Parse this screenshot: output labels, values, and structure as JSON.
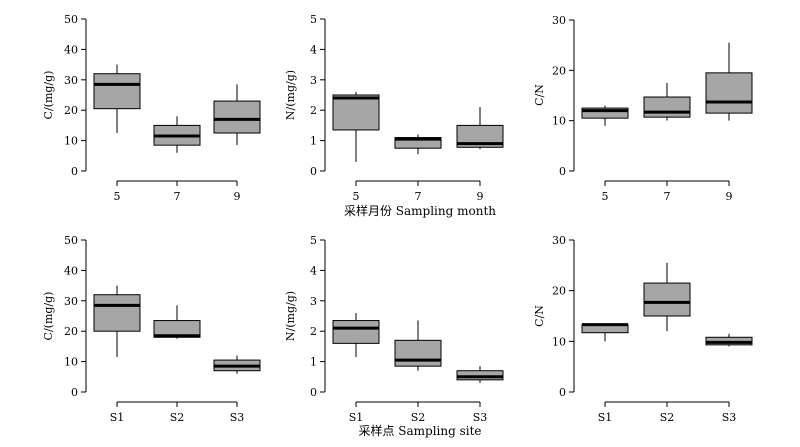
{
  "chart_data": [
    {
      "type": "box",
      "ylabel": "C/(mg/g)",
      "ylim": [
        0,
        50
      ],
      "yticks": [
        0,
        10,
        20,
        30,
        40,
        50
      ],
      "categories": [
        "5",
        "7",
        "9"
      ],
      "boxes": [
        {
          "min": 12.5,
          "q1": 20.5,
          "median": 28.5,
          "q3": 32,
          "max": 35
        },
        {
          "min": 6,
          "q1": 8.5,
          "median": 11.5,
          "q3": 15,
          "max": 18
        },
        {
          "min": 8.5,
          "q1": 12.5,
          "median": 17,
          "q3": 23,
          "max": 28.5
        }
      ]
    },
    {
      "type": "box",
      "ylabel": "N/(mg/g)",
      "ylim": [
        0,
        5
      ],
      "yticks": [
        0,
        1,
        2,
        3,
        4,
        5
      ],
      "categories": [
        "5",
        "7",
        "9"
      ],
      "boxes": [
        {
          "min": 0.3,
          "q1": 1.35,
          "median": 2.4,
          "q3": 2.5,
          "max": 2.6
        },
        {
          "min": 0.55,
          "q1": 0.75,
          "median": 1.05,
          "q3": 1.1,
          "max": 1.2
        },
        {
          "min": 0.72,
          "q1": 0.78,
          "median": 0.9,
          "q3": 1.5,
          "max": 2.1
        }
      ]
    },
    {
      "type": "box",
      "ylabel": "C/N",
      "ylim": [
        0,
        30
      ],
      "yticks": [
        0,
        10,
        20,
        30
      ],
      "categories": [
        "5",
        "7",
        "9"
      ],
      "boxes": [
        {
          "min": 9,
          "q1": 10.5,
          "median": 12,
          "q3": 12.5,
          "max": 13
        },
        {
          "min": 10,
          "q1": 10.7,
          "median": 11.7,
          "q3": 14.7,
          "max": 17.5
        },
        {
          "min": 10,
          "q1": 11.5,
          "median": 13.7,
          "q3": 19.5,
          "max": 25.5
        }
      ]
    },
    {
      "type": "box",
      "ylabel": "C/(mg/g)",
      "ylim": [
        0,
        50
      ],
      "yticks": [
        0,
        10,
        20,
        30,
        40,
        50
      ],
      "categories": [
        "S1",
        "S2",
        "S3"
      ],
      "boxes": [
        {
          "min": 11.5,
          "q1": 20,
          "median": 28.5,
          "q3": 32,
          "max": 35
        },
        {
          "min": 17.5,
          "q1": 18,
          "median": 18.5,
          "q3": 23.5,
          "max": 28.5
        },
        {
          "min": 6,
          "q1": 7,
          "median": 8.5,
          "q3": 10.5,
          "max": 12
        }
      ]
    },
    {
      "type": "box",
      "ylabel": "N/(mg/g)",
      "ylim": [
        0,
        5
      ],
      "yticks": [
        0,
        1,
        2,
        3,
        4,
        5
      ],
      "categories": [
        "S1",
        "S2",
        "S3"
      ],
      "boxes": [
        {
          "min": 1.15,
          "q1": 1.6,
          "median": 2.1,
          "q3": 2.35,
          "max": 2.6
        },
        {
          "min": 0.7,
          "q1": 0.85,
          "median": 1.05,
          "q3": 1.7,
          "max": 2.35
        },
        {
          "min": 0.3,
          "q1": 0.4,
          "median": 0.5,
          "q3": 0.7,
          "max": 0.85
        }
      ]
    },
    {
      "type": "box",
      "ylabel": "C/N",
      "ylim": [
        0,
        30
      ],
      "yticks": [
        0,
        10,
        20,
        30
      ],
      "categories": [
        "S1",
        "S2",
        "S3"
      ],
      "boxes": [
        {
          "min": 10,
          "q1": 11.7,
          "median": 13.3,
          "q3": 13.3,
          "max": 13.5
        },
        {
          "min": 12,
          "q1": 15,
          "median": 17.7,
          "q3": 21.5,
          "max": 25.5
        },
        {
          "min": 9,
          "q1": 9.3,
          "median": 9.8,
          "q3": 10.8,
          "max": 11.5
        }
      ]
    }
  ],
  "row_titles": [
    "采样月份 Sampling month",
    "采样点 Sampling site"
  ],
  "colors": {
    "box_fill": "#a6a6a6",
    "stroke": "#000000"
  }
}
